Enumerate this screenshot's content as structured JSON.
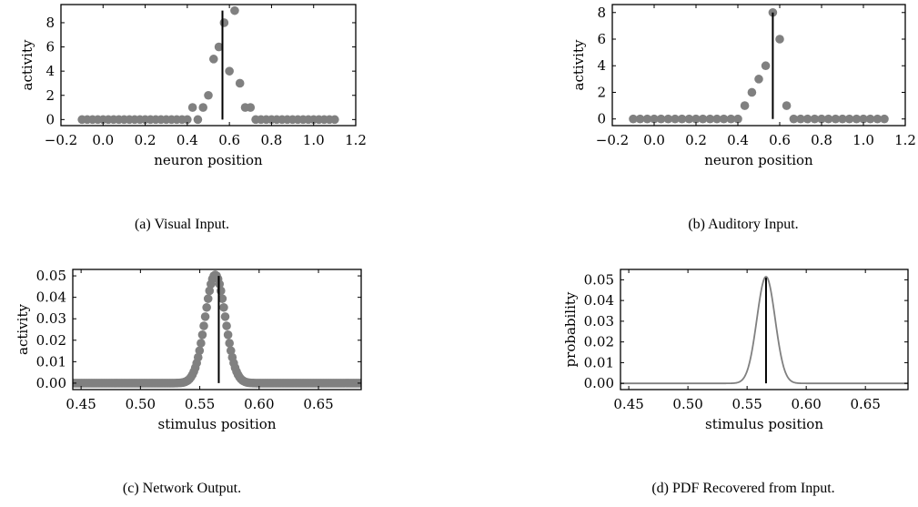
{
  "chart_data": [
    {
      "id": "a",
      "type": "scatter",
      "caption": "(a) Visual Input.",
      "xlabel": "neuron position",
      "ylabel": "activity",
      "xlim": [
        -0.2,
        1.2
      ],
      "ylim": [
        -0.5,
        9.5
      ],
      "xticks": [
        -0.2,
        0.0,
        0.2,
        0.4,
        0.6,
        0.8,
        1.0,
        1.2
      ],
      "xtick_labels": [
        "−0.2",
        "0.0",
        "0.2",
        "0.4",
        "0.6",
        "0.8",
        "1.0",
        "1.2"
      ],
      "yticks": [
        0,
        2,
        4,
        6,
        8
      ],
      "ytick_labels": [
        "0",
        "2",
        "4",
        "6",
        "8"
      ],
      "marker_color": "#808080",
      "vline": {
        "x": 0.567,
        "y": [
          0,
          9
        ]
      },
      "x": [
        -0.1,
        -0.075,
        -0.05,
        -0.025,
        0.0,
        0.025,
        0.05,
        0.075,
        0.1,
        0.125,
        0.15,
        0.175,
        0.2,
        0.225,
        0.25,
        0.275,
        0.3,
        0.325,
        0.35,
        0.375,
        0.4,
        0.425,
        0.45,
        0.475,
        0.5,
        0.525,
        0.55,
        0.575,
        0.6,
        0.625,
        0.65,
        0.675,
        0.7,
        0.725,
        0.75,
        0.775,
        0.8,
        0.825,
        0.85,
        0.875,
        0.9,
        0.925,
        0.95,
        0.975,
        1.0,
        1.025,
        1.05,
        1.075,
        1.1
      ],
      "y": [
        0,
        0,
        0,
        0,
        0,
        0,
        0,
        0,
        0,
        0,
        0,
        0,
        0,
        0,
        0,
        0,
        0,
        0,
        0,
        0,
        0,
        1,
        0,
        1,
        2,
        5,
        6,
        8,
        4,
        9,
        3,
        1,
        1,
        0,
        0,
        0,
        0,
        0,
        0,
        0,
        0,
        0,
        0,
        0,
        0,
        0,
        0,
        0,
        0
      ]
    },
    {
      "id": "b",
      "type": "scatter",
      "caption": "(b) Auditory Input.",
      "xlabel": "neuron position",
      "ylabel": "activity",
      "xlim": [
        -0.2,
        1.2
      ],
      "ylim": [
        -0.5,
        8.6
      ],
      "xticks": [
        -0.2,
        0.0,
        0.2,
        0.4,
        0.6,
        0.8,
        1.0,
        1.2
      ],
      "xtick_labels": [
        "−0.2",
        "0.0",
        "0.2",
        "0.4",
        "0.6",
        "0.8",
        "1.0",
        "1.2"
      ],
      "yticks": [
        0,
        2,
        4,
        6,
        8
      ],
      "ytick_labels": [
        "0",
        "2",
        "4",
        "6",
        "8"
      ],
      "marker_color": "#808080",
      "vline": {
        "x": 0.567,
        "y": [
          0,
          8
        ]
      },
      "x": [
        -0.1,
        -0.067,
        -0.033,
        0.0,
        0.033,
        0.067,
        0.1,
        0.133,
        0.167,
        0.2,
        0.233,
        0.267,
        0.3,
        0.333,
        0.367,
        0.4,
        0.433,
        0.467,
        0.5,
        0.533,
        0.567,
        0.6,
        0.633,
        0.667,
        0.7,
        0.733,
        0.767,
        0.8,
        0.833,
        0.867,
        0.9,
        0.933,
        0.967,
        1.0,
        1.033,
        1.067,
        1.1
      ],
      "y": [
        0,
        0,
        0,
        0,
        0,
        0,
        0,
        0,
        0,
        0,
        0,
        0,
        0,
        0,
        0,
        0,
        1,
        2,
        3,
        4,
        8,
        6,
        1,
        0,
        0,
        0,
        0,
        0,
        0,
        0,
        0,
        0,
        0,
        0,
        0,
        0,
        0
      ]
    },
    {
      "id": "c",
      "type": "scatter",
      "caption": "(c) Network Output.",
      "xlabel": "stimulus position",
      "ylabel": "activity",
      "xlim": [
        0.443,
        0.686
      ],
      "ylim": [
        -0.003,
        0.053
      ],
      "xticks": [
        0.45,
        0.5,
        0.55,
        0.6,
        0.65
      ],
      "xtick_labels": [
        "0.45",
        "0.50",
        "0.55",
        "0.60",
        "0.65"
      ],
      "yticks": [
        0.0,
        0.01,
        0.02,
        0.03,
        0.04,
        0.05
      ],
      "ytick_labels": [
        "0.00",
        "0.01",
        "0.02",
        "0.03",
        "0.04",
        "0.05"
      ],
      "marker_color": "#808080",
      "vline": {
        "x": 0.566,
        "y": [
          0,
          0.05
        ]
      },
      "gaussian": {
        "mu": 0.563,
        "sigma": 0.0085,
        "amp": 0.0505,
        "start": 0.443,
        "stop": 0.686,
        "step": 0.0012
      }
    },
    {
      "id": "d",
      "type": "line",
      "caption": "(d) PDF Recovered from Input.",
      "xlabel": "stimulus position",
      "ylabel": "probability",
      "xlim": [
        0.443,
        0.686
      ],
      "ylim": [
        -0.003,
        0.055
      ],
      "xticks": [
        0.45,
        0.5,
        0.55,
        0.6,
        0.65
      ],
      "xtick_labels": [
        "0.45",
        "0.50",
        "0.55",
        "0.60",
        "0.65"
      ],
      "yticks": [
        0.0,
        0.01,
        0.02,
        0.03,
        0.04,
        0.05
      ],
      "ytick_labels": [
        "0.00",
        "0.01",
        "0.02",
        "0.03",
        "0.04",
        "0.05"
      ],
      "line_color": "#808080",
      "vline": {
        "x": 0.566,
        "y": [
          0,
          0.051
        ]
      },
      "gaussian": {
        "mu": 0.566,
        "sigma": 0.0077,
        "amp": 0.0515,
        "start": 0.443,
        "stop": 0.686,
        "step": 0.0005
      }
    }
  ]
}
